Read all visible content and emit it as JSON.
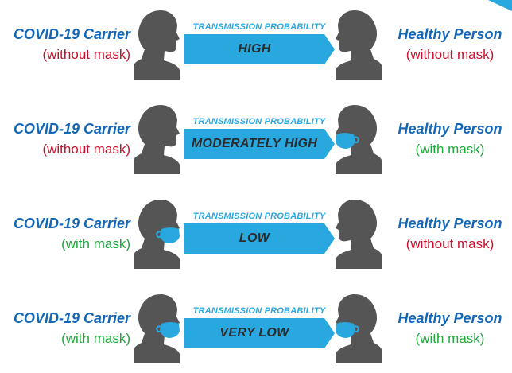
{
  "colors": {
    "carrier_label": "#1566b5",
    "without_mask": "#c8102e",
    "with_mask": "#1aa83a",
    "arrow_fill": "#29a8e0",
    "silhouette": "#555555",
    "mask": "#29a8e0"
  },
  "icons": {
    "person": "person-profile-silhouette-icon",
    "mask": "face-mask-icon",
    "arrow": "right-arrow-banner-icon"
  },
  "rows": [
    {
      "carrier": {
        "title": "COVID-19 Carrier",
        "status": "(without mask)",
        "masked": false
      },
      "caption": "TRANSMISSION PROBABILITY",
      "level": "HIGH",
      "healthy": {
        "title": "Healthy Person",
        "status": "(without mask)",
        "masked": false
      }
    },
    {
      "carrier": {
        "title": "COVID-19 Carrier",
        "status": "(without mask)",
        "masked": false
      },
      "caption": "TRANSMISSION PROBABILITY",
      "level": "MODERATELY HIGH",
      "healthy": {
        "title": "Healthy Person",
        "status": "(with mask)",
        "masked": true
      }
    },
    {
      "carrier": {
        "title": "COVID-19 Carrier",
        "status": "(with mask)",
        "masked": true
      },
      "caption": "TRANSMISSION PROBABILITY",
      "level": "LOW",
      "healthy": {
        "title": "Healthy Person",
        "status": "(without mask)",
        "masked": false
      }
    },
    {
      "carrier": {
        "title": "COVID-19 Carrier",
        "status": "(with mask)",
        "masked": true
      },
      "caption": "TRANSMISSION PROBABILITY",
      "level": "VERY LOW",
      "healthy": {
        "title": "Healthy Person",
        "status": "(with mask)",
        "masked": true
      }
    }
  ]
}
